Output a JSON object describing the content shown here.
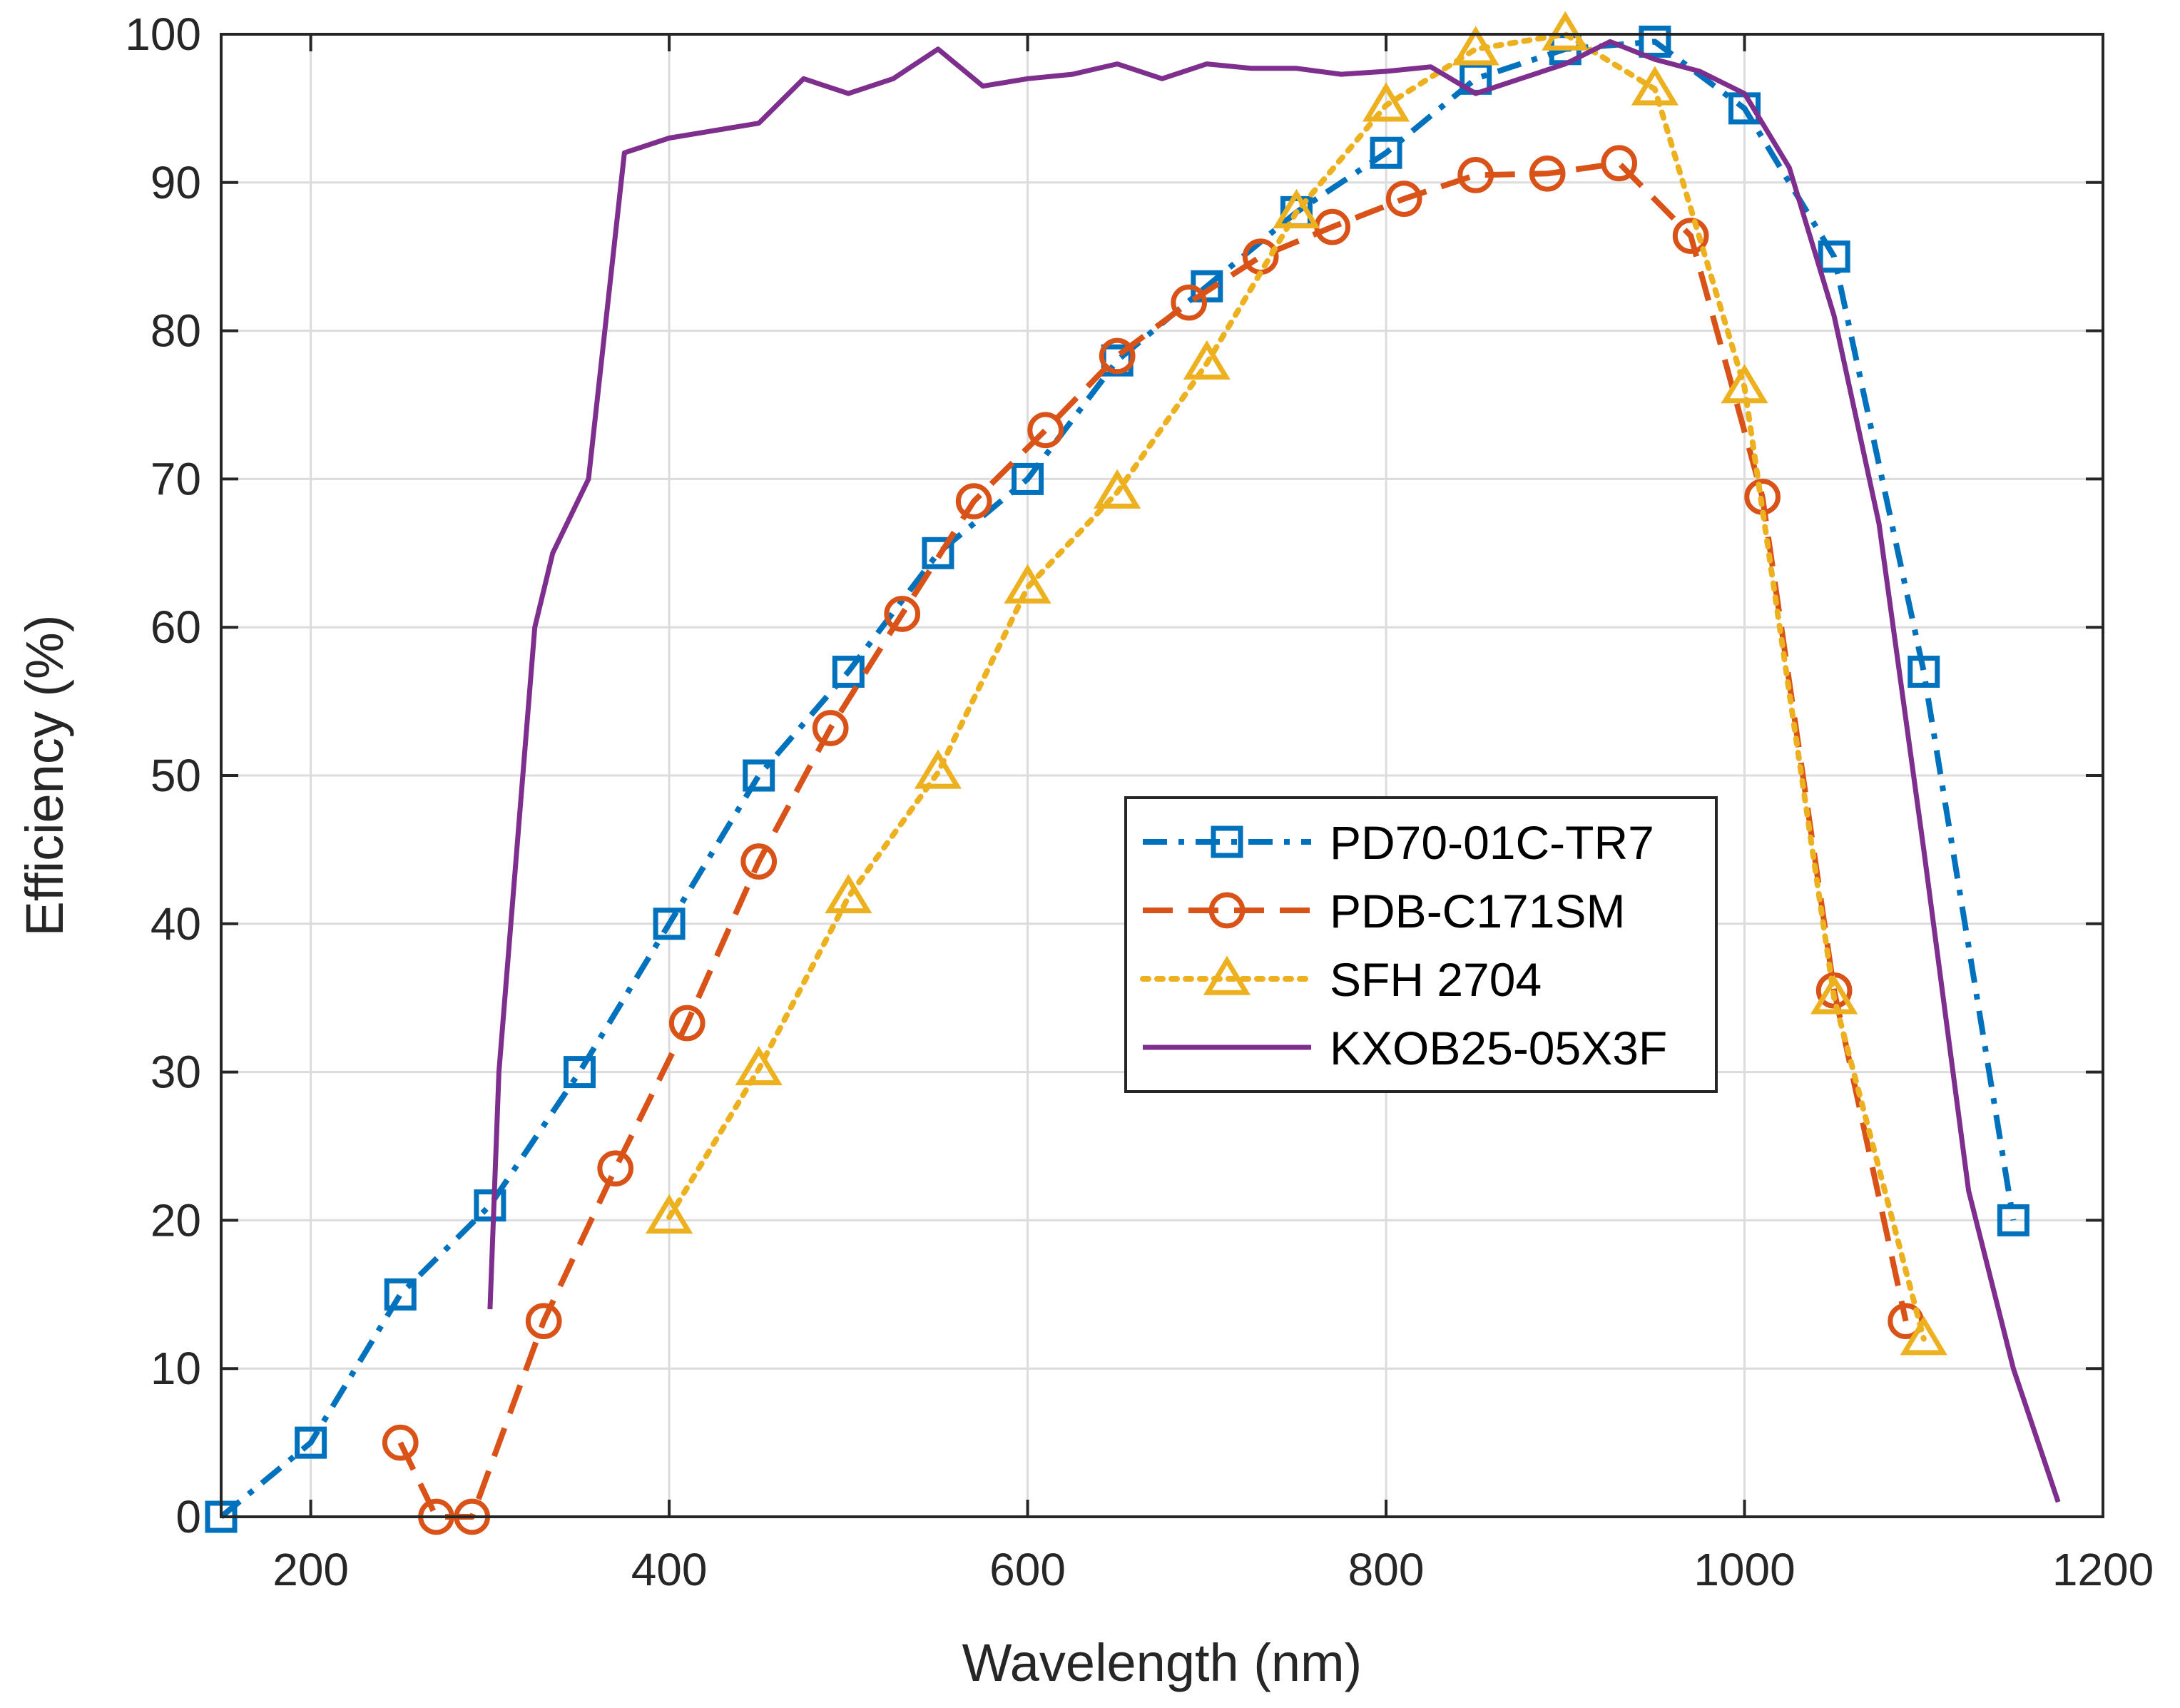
{
  "chart_data": {
    "type": "line",
    "title": "",
    "xlabel": "Wavelength (nm)",
    "ylabel": "Efficiency (%)",
    "xlim": [
      150,
      1200
    ],
    "ylim": [
      0,
      100
    ],
    "xticks": [
      200,
      400,
      600,
      800,
      1000,
      1200
    ],
    "yticks": [
      0,
      10,
      20,
      30,
      40,
      50,
      60,
      70,
      80,
      90,
      100
    ],
    "grid": true,
    "legend_position": "center-right",
    "series": [
      {
        "name": "PD70-01C-TR7",
        "color": "#0072bd",
        "line_style": "dash-dot",
        "marker": "square",
        "x": [
          150,
          200,
          250,
          300,
          350,
          400,
          450,
          500,
          550,
          600,
          650,
          700,
          750,
          800,
          850,
          900,
          950,
          1000,
          1050,
          1100,
          1150
        ],
        "y": [
          0,
          5,
          15,
          21,
          30,
          40,
          50,
          57,
          65,
          70,
          78,
          83,
          88,
          92,
          97,
          99,
          99.5,
          95,
          85,
          57,
          20
        ]
      },
      {
        "name": "PDB-C171SM",
        "color": "#d95319",
        "line_style": "dashed",
        "marker": "circle",
        "x": [
          250,
          270,
          290,
          330,
          370,
          410,
          450,
          490,
          530,
          570,
          610,
          650,
          690,
          730,
          770,
          810,
          850,
          890,
          930,
          970,
          1010,
          1050,
          1090
        ],
        "y": [
          5,
          0,
          0,
          13.2,
          23.5,
          33.3,
          44.2,
          53.2,
          60.9,
          68.5,
          73.3,
          78.3,
          81.9,
          85,
          87,
          88.9,
          90.5,
          90.6,
          91.3,
          86.4,
          68.8,
          35.5,
          13.2
        ]
      },
      {
        "name": "SFH 2704",
        "color": "#edb120",
        "line_style": "dotted",
        "marker": "triangle",
        "x": [
          400,
          450,
          500,
          550,
          600,
          650,
          700,
          750,
          800,
          850,
          900,
          950,
          1000,
          1050,
          1100
        ],
        "y": [
          20.2,
          30.2,
          41.8,
          50.2,
          62.7,
          69.1,
          77.8,
          88,
          95.2,
          99,
          100,
          96.3,
          76.2,
          35,
          12
        ]
      },
      {
        "name": "KXOB25-05X3F",
        "color": "#7e2f8e",
        "line_style": "solid",
        "marker": "none",
        "x": [
          300,
          305,
          315,
          325,
          335,
          355,
          375,
          400,
          425,
          450,
          475,
          500,
          525,
          550,
          575,
          600,
          625,
          650,
          675,
          700,
          725,
          750,
          775,
          800,
          825,
          850,
          875,
          900,
          925,
          950,
          975,
          1000,
          1025,
          1050,
          1075,
          1100,
          1125,
          1150,
          1175
        ],
        "y": [
          14,
          30,
          45,
          60,
          65,
          70,
          92,
          93,
          93.5,
          94,
          97,
          96,
          97,
          99,
          96.5,
          97,
          97.3,
          98,
          97,
          98,
          97.7,
          97.7,
          97.3,
          97.5,
          97.8,
          96,
          97,
          98,
          99.5,
          98.3,
          97.5,
          96,
          91,
          81,
          67,
          45,
          22,
          10,
          1
        ]
      }
    ]
  }
}
